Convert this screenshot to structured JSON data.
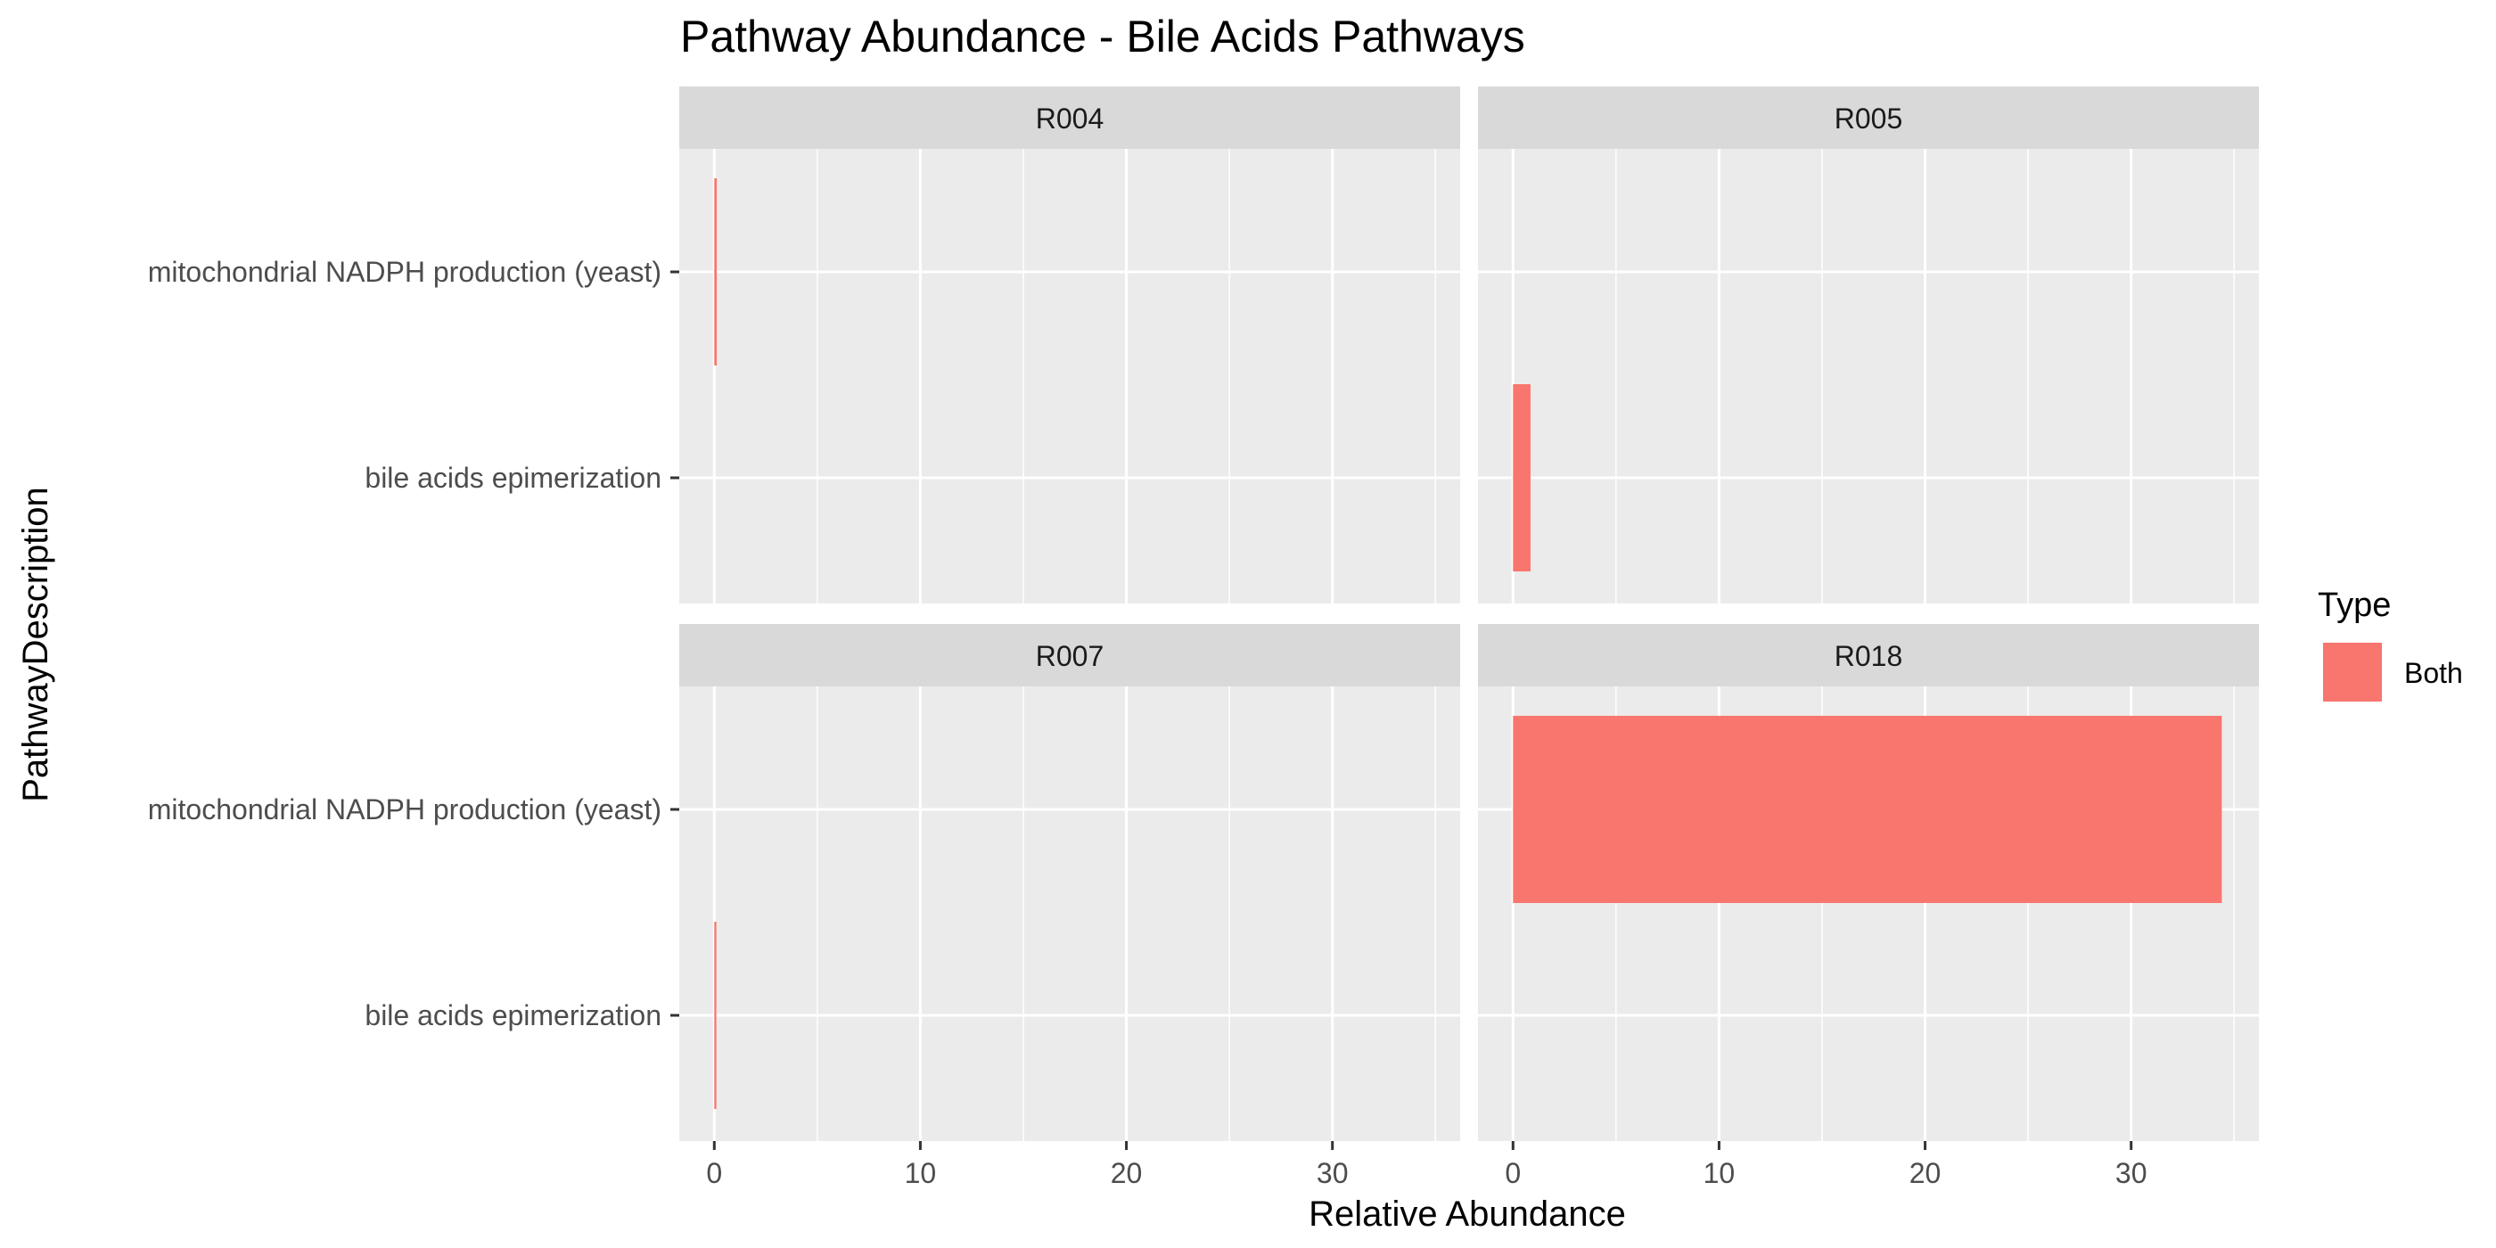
{
  "chart_data": {
    "type": "bar",
    "orientation": "horizontal",
    "faceted": true,
    "title": "Pathway Abundance - Bile Acids Pathways",
    "xlabel": "Relative Abundance",
    "ylabel": "PathwayDescription",
    "xlim": [
      -1.7,
      36.2
    ],
    "x_ticks": [
      0,
      10,
      20,
      30
    ],
    "categories": [
      "mitochondrial NADPH production (yeast)",
      "bile acids epimerization"
    ],
    "legend": {
      "title": "Type",
      "position": "right",
      "entries": [
        {
          "label": "Both",
          "color": "#F8766D"
        }
      ]
    },
    "colors": {
      "bar": "#F8766D",
      "panel_bg": "#EBEBEB",
      "strip_bg": "#D9D9D9",
      "grid": "#FFFFFF"
    },
    "grid": true,
    "facets": [
      {
        "label": "R004",
        "values": [
          0.12,
          0.0
        ]
      },
      {
        "label": "R005",
        "values": [
          0.0,
          0.85
        ]
      },
      {
        "label": "R007",
        "values": [
          0.0,
          0.1
        ]
      },
      {
        "label": "R018",
        "values": [
          34.4,
          0.0
        ]
      }
    ]
  }
}
